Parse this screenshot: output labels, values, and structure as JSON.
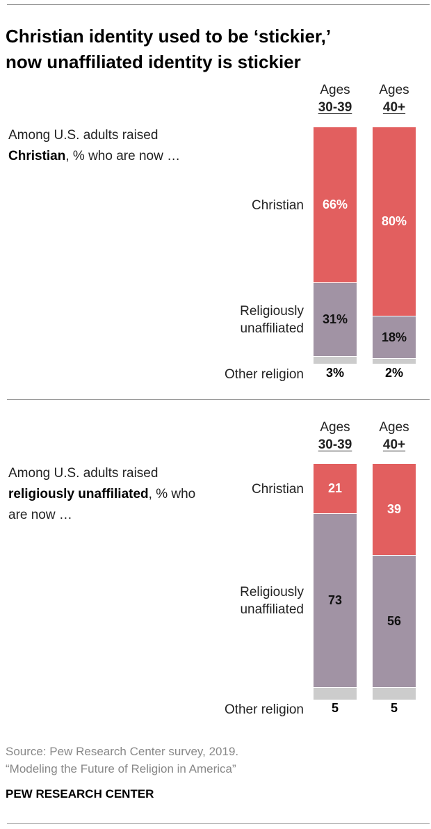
{
  "title": {
    "line1": "Christian identity used to be ‘stickier,’",
    "line2": "now unaffiliated identity is stickier"
  },
  "colors": {
    "christian": "#e25f5f",
    "unaffiliated": "#a193a4",
    "other": "#cccccc"
  },
  "chart_data": [
    {
      "type": "bar",
      "stacked": true,
      "subtitle": {
        "pre": "Among U.S. adults raised ",
        "bold": "Christian",
        "post": ", % who are now …"
      },
      "ages_word": "Ages",
      "categories": [
        "30-39",
        "40+"
      ],
      "series": [
        {
          "name": "Christian",
          "values": [
            66,
            80
          ],
          "labels": [
            "66%",
            "80%"
          ]
        },
        {
          "name": "Religiously unaffiliated",
          "name_lines": [
            "Religiously",
            "unaffiliated"
          ],
          "values": [
            31,
            18
          ],
          "labels": [
            "31%",
            "18%"
          ]
        },
        {
          "name": "Other religion",
          "values": [
            3,
            2
          ],
          "labels": [
            "3%",
            "2%"
          ]
        }
      ]
    },
    {
      "type": "bar",
      "stacked": true,
      "subtitle": {
        "pre": "Among U.S. adults raised ",
        "bold": "religiously unaffiliated",
        "post": ", % who are now …"
      },
      "ages_word": "Ages",
      "categories": [
        "30-39",
        "40+"
      ],
      "series": [
        {
          "name": "Christian",
          "values": [
            21,
            39
          ],
          "labels": [
            "21",
            "39"
          ]
        },
        {
          "name": "Religiously unaffiliated",
          "name_lines": [
            "Religiously",
            "unaffiliated"
          ],
          "values": [
            73,
            56
          ],
          "labels": [
            "73",
            "56"
          ]
        },
        {
          "name": "Other religion",
          "values": [
            5,
            5
          ],
          "labels": [
            "5",
            "5"
          ]
        }
      ]
    }
  ],
  "source": {
    "line1": "Source: Pew Research Center survey, 2019.",
    "line2": "“Modeling the Future of Religion in America”"
  },
  "brand": "PEW RESEARCH CENTER"
}
